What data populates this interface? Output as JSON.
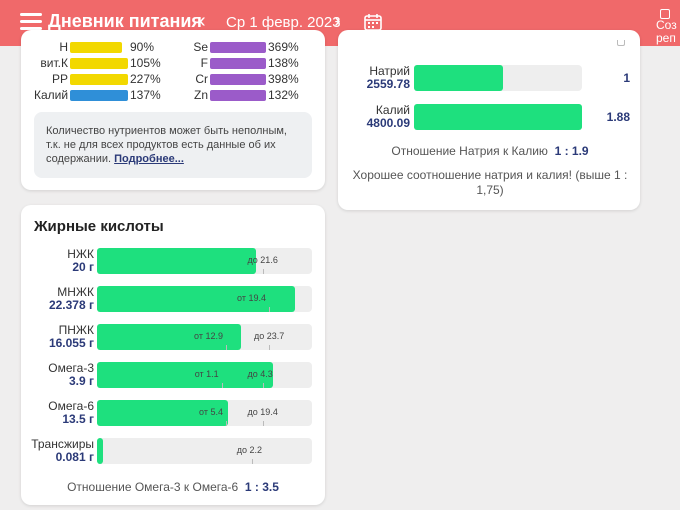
{
  "header": {
    "title": "Дневник питания",
    "date": "Ср 1 февр. 2023",
    "prev_icon": "chevron-left-icon",
    "next_icon": "chevron-right-icon",
    "calendar_icon": "calendar-icon",
    "create_label_1": "Соз",
    "create_label_2": "реп",
    "colors": {
      "header_bg": "#f0696a",
      "fill_green": "#1ee07e",
      "value_blue": "#2b3a78",
      "yellow": "#f2d800",
      "purple": "#9b5bc9",
      "blue": "#2f8fd8"
    }
  },
  "vitamins": {
    "left": [
      {
        "name": "Н",
        "pct": "90%",
        "fill": 0.9,
        "color": "#f2d800"
      },
      {
        "name": "вит.К",
        "pct": "105%",
        "fill": 1.0,
        "color": "#f2d800"
      },
      {
        "name": "PP",
        "pct": "227%",
        "fill": 1.0,
        "color": "#f2d800"
      },
      {
        "name": "Калий",
        "pct": "137%",
        "fill": 1.0,
        "color": "#2f8fd8"
      }
    ],
    "right": [
      {
        "name": "Se",
        "pct": "369%",
        "fill": 1.0,
        "color": "#9b5bc9"
      },
      {
        "name": "F",
        "pct": "138%",
        "fill": 1.0,
        "color": "#9b5bc9"
      },
      {
        "name": "Cr",
        "pct": "398%",
        "fill": 1.0,
        "color": "#9b5bc9"
      },
      {
        "name": "Zn",
        "pct": "132%",
        "fill": 1.0,
        "color": "#9b5bc9"
      }
    ],
    "note_text": "Количество нутриентов может быть неполным, т.к. не для всех продуктов есть данные об их содержании.",
    "note_link": "Подробнее..."
  },
  "fatty_acids": {
    "title": "Жирные кислоты",
    "rows": [
      {
        "name": "НЖК",
        "value": "20 г",
        "fill": 0.74,
        "tags": [
          {
            "text": "до 21.6",
            "pos": 0.77,
            "side": "right"
          }
        ]
      },
      {
        "name": "МНЖК",
        "value": "22.378 г",
        "fill": 0.92,
        "tags": [
          {
            "text": "от 19.4",
            "pos": 0.8,
            "side": "left"
          }
        ]
      },
      {
        "name": "ПНЖК",
        "value": "16.055 г",
        "fill": 0.67,
        "tags": [
          {
            "text": "от 12.9",
            "pos": 0.6,
            "side": "left"
          },
          {
            "text": "до 23.7",
            "pos": 0.8,
            "side": "right"
          }
        ]
      },
      {
        "name": "Омега-3",
        "value": "3.9 г",
        "fill": 0.82,
        "tags": [
          {
            "text": "от 1.1",
            "pos": 0.58,
            "side": "left"
          },
          {
            "text": "до 4.3",
            "pos": 0.77,
            "side": "right"
          }
        ]
      },
      {
        "name": "Омега-6",
        "value": "13.5 г",
        "fill": 0.61,
        "tags": [
          {
            "text": "от 5.4",
            "pos": 0.6,
            "side": "left"
          },
          {
            "text": "до 19.4",
            "pos": 0.77,
            "side": "right"
          }
        ]
      },
      {
        "name": "Трансжиры",
        "value": "0.081 г",
        "fill": 0.03,
        "tags": [
          {
            "text": "до 2.2",
            "pos": 0.72,
            "side": "right"
          }
        ]
      }
    ],
    "ratio_label": "Отношение Омега-3 к Омега-6",
    "ratio_value": "1 : 3.5"
  },
  "minerals": {
    "rows": [
      {
        "name": "Натрий",
        "value": "2559.78",
        "fill": 0.53,
        "ratio": "1"
      },
      {
        "name": "Калий",
        "value": "4800.09",
        "fill": 1.0,
        "ratio": "1.88"
      }
    ],
    "ratio_label": "Отношение Натрия к Калию",
    "ratio_value": "1 : 1.9",
    "comment": "Хорошее соотношение натрия и калия! (выше 1 : 1,75)"
  }
}
